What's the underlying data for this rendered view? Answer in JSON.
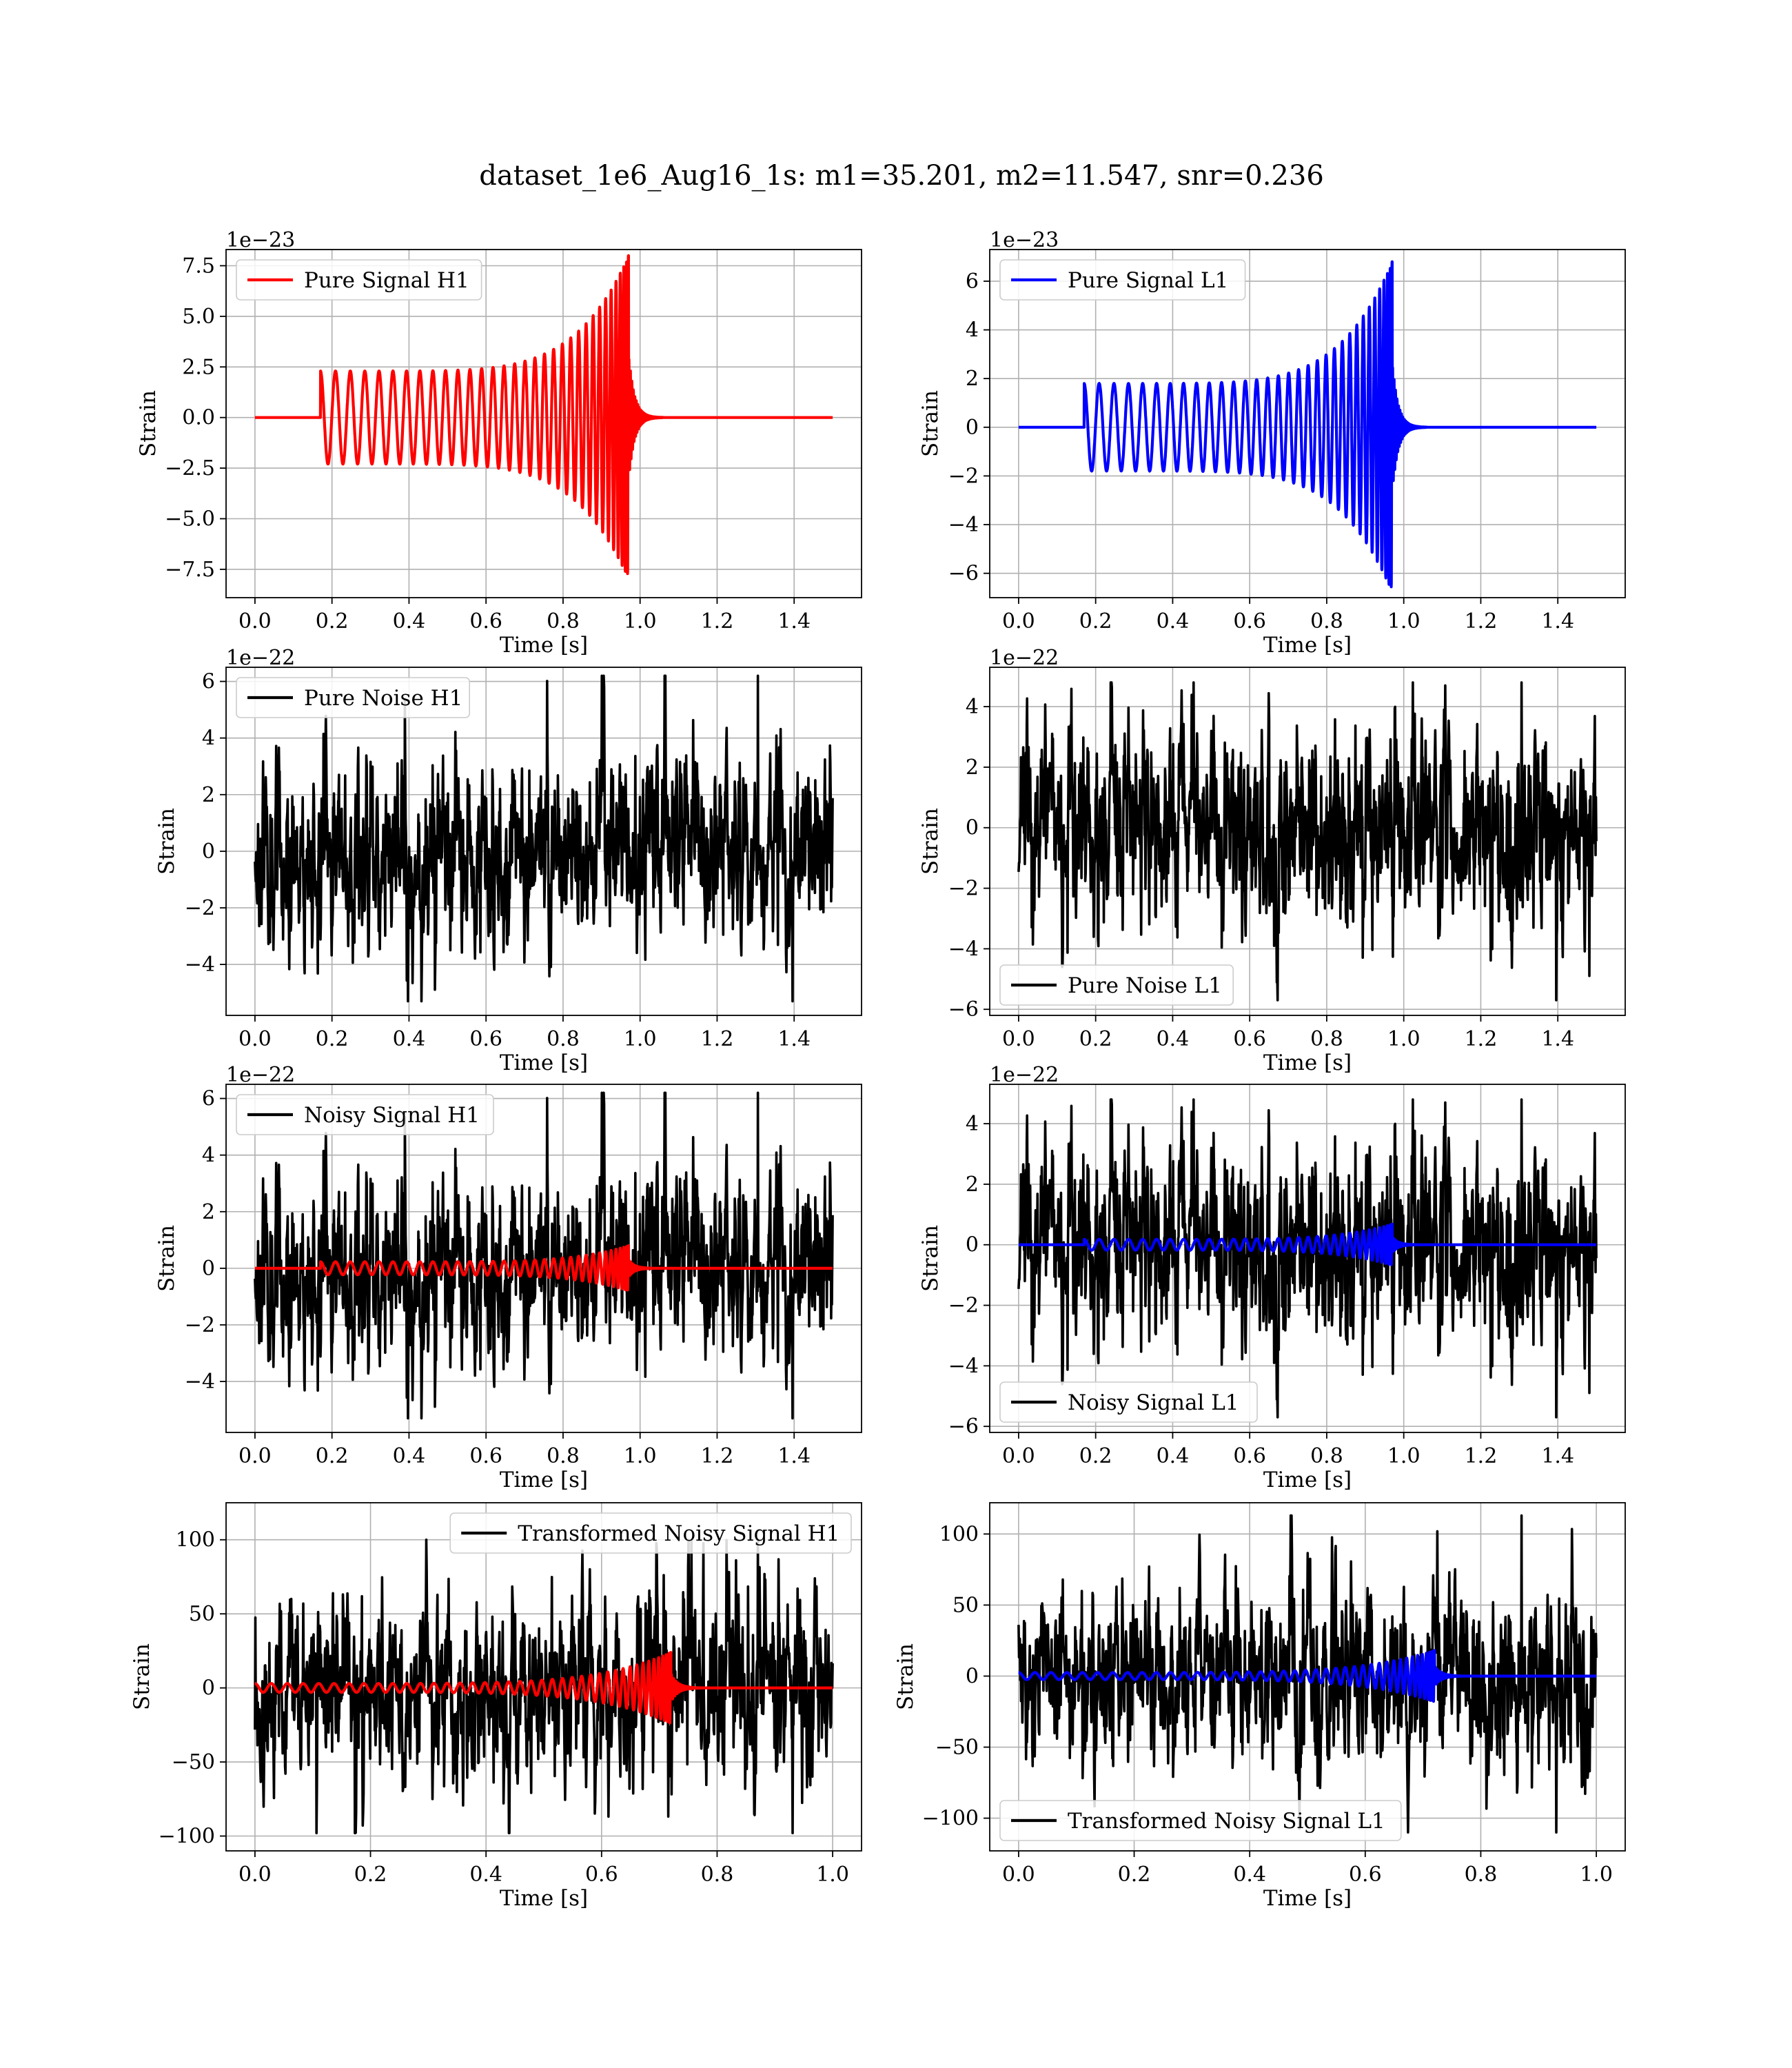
{
  "figure": {
    "title": "dataset_1e6_Aug16_1s: m1=35.201, m2=11.547, snr=0.236"
  },
  "colors": {
    "red": "#ff0000",
    "blue": "#0000ff",
    "black": "#000000",
    "grid": "#b0b0b0"
  },
  "chart_data": [
    {
      "type": "line",
      "kind": "chirp",
      "panel": "top-left",
      "legend": "top-left",
      "offset_text": "1e−23",
      "xlabel": "Time [s]",
      "ylabel": "Strain",
      "xlim": [
        -0.075,
        1.575
      ],
      "ylim": [
        -8.9,
        8.3
      ],
      "xticks": [
        0.0,
        0.2,
        0.4,
        0.6,
        0.8,
        1.0,
        1.2,
        1.4
      ],
      "xticklabels": [
        "0.0",
        "0.2",
        "0.4",
        "0.6",
        "0.8",
        "1.0",
        "1.2",
        "1.4"
      ],
      "yticks": [
        -7.5,
        -5.0,
        -2.5,
        0.0,
        2.5,
        5.0,
        7.5
      ],
      "yticklabels": [
        "−7.5",
        "−5.0",
        "−2.5",
        "0.0",
        "2.5",
        "5.0",
        "7.5"
      ],
      "grid": true,
      "series": [
        {
          "name": "Pure Signal H1",
          "color": "#ff0000",
          "signal": {
            "t_start": 0.0,
            "t_end": 1.5,
            "onset": 0.17,
            "merger": 0.97,
            "amp_start": 2.3,
            "amp_peak": 8.0,
            "cycles": 32,
            "ringdown": 0.015
          }
        }
      ]
    },
    {
      "type": "line",
      "kind": "chirp",
      "panel": "top-right",
      "legend": "top-left",
      "offset_text": "1e−23",
      "xlabel": "Time [s]",
      "ylabel": "Strain",
      "xlim": [
        -0.075,
        1.575
      ],
      "ylim": [
        -7.0,
        7.3
      ],
      "xticks": [
        0.0,
        0.2,
        0.4,
        0.6,
        0.8,
        1.0,
        1.2,
        1.4
      ],
      "xticklabels": [
        "0.0",
        "0.2",
        "0.4",
        "0.6",
        "0.8",
        "1.0",
        "1.2",
        "1.4"
      ],
      "yticks": [
        -6,
        -4,
        -2,
        0,
        2,
        4,
        6
      ],
      "yticklabels": [
        "−6",
        "−4",
        "−2",
        "0",
        "2",
        "4",
        "6"
      ],
      "grid": true,
      "series": [
        {
          "name": "Pure Signal L1",
          "color": "#0000ff",
          "signal": {
            "t_start": 0.0,
            "t_end": 1.5,
            "onset": 0.17,
            "merger": 0.97,
            "amp_start": 1.8,
            "amp_peak": 6.8,
            "cycles": 32,
            "ringdown": 0.015
          }
        }
      ]
    },
    {
      "type": "line",
      "kind": "noise",
      "panel": "row2-left",
      "legend": "top-left",
      "offset_text": "1e−22",
      "xlabel": "Time [s]",
      "ylabel": "Strain",
      "xlim": [
        -0.075,
        1.575
      ],
      "ylim": [
        -5.8,
        6.5
      ],
      "xticks": [
        0.0,
        0.2,
        0.4,
        0.6,
        0.8,
        1.0,
        1.2,
        1.4
      ],
      "xticklabels": [
        "0.0",
        "0.2",
        "0.4",
        "0.6",
        "0.8",
        "1.0",
        "1.2",
        "1.4"
      ],
      "yticks": [
        -4,
        -2,
        0,
        2,
        4,
        6
      ],
      "yticklabels": [
        "−4",
        "−2",
        "0",
        "2",
        "4",
        "6"
      ],
      "grid": true,
      "series": [
        {
          "name": "Pure Noise H1",
          "color": "#000000",
          "noise": {
            "t_start": 0.0,
            "t_end": 1.5,
            "n": 1500,
            "sigma": 1.55,
            "min": -5.3,
            "max": 6.2,
            "seed": 11
          }
        }
      ]
    },
    {
      "type": "line",
      "kind": "noise",
      "panel": "row2-right",
      "legend": "bottom-left",
      "offset_text": "1e−22",
      "xlabel": "Time [s]",
      "ylabel": "Strain",
      "xlim": [
        -0.075,
        1.575
      ],
      "ylim": [
        -6.2,
        5.3
      ],
      "xticks": [
        0.0,
        0.2,
        0.4,
        0.6,
        0.8,
        1.0,
        1.2,
        1.4
      ],
      "xticklabels": [
        "0.0",
        "0.2",
        "0.4",
        "0.6",
        "0.8",
        "1.0",
        "1.2",
        "1.4"
      ],
      "yticks": [
        -6,
        -4,
        -2,
        0,
        2,
        4
      ],
      "yticklabels": [
        "−6",
        "−4",
        "−2",
        "0",
        "2",
        "4"
      ],
      "grid": true,
      "series": [
        {
          "name": "Pure Noise L1",
          "color": "#000000",
          "noise": {
            "t_start": 0.0,
            "t_end": 1.5,
            "n": 1500,
            "sigma": 1.55,
            "min": -5.7,
            "max": 4.8,
            "seed": 23
          }
        }
      ]
    },
    {
      "type": "line",
      "kind": "noisy",
      "panel": "row3-left",
      "legend": "top-left",
      "offset_text": "1e−22",
      "xlabel": "Time [s]",
      "ylabel": "Strain",
      "xlim": [
        -0.075,
        1.575
      ],
      "ylim": [
        -5.8,
        6.5
      ],
      "xticks": [
        0.0,
        0.2,
        0.4,
        0.6,
        0.8,
        1.0,
        1.2,
        1.4
      ],
      "xticklabels": [
        "0.0",
        "0.2",
        "0.4",
        "0.6",
        "0.8",
        "1.0",
        "1.2",
        "1.4"
      ],
      "yticks": [
        -4,
        -2,
        0,
        2,
        4,
        6
      ],
      "yticklabels": [
        "−4",
        "−2",
        "0",
        "2",
        "4",
        "6"
      ],
      "grid": true,
      "series": [
        {
          "name": "Noisy Signal H1",
          "color": "#000000",
          "noise": {
            "t_start": 0.0,
            "t_end": 1.5,
            "n": 1500,
            "sigma": 1.55,
            "min": -5.3,
            "max": 6.2,
            "seed": 11
          }
        },
        {
          "name": "",
          "color": "#ff0000",
          "signal": {
            "t_start": 0.0,
            "t_end": 1.5,
            "onset": 0.17,
            "merger": 0.97,
            "amp_start": 0.23,
            "amp_peak": 0.8,
            "cycles": 32,
            "ringdown": 0.015
          }
        }
      ]
    },
    {
      "type": "line",
      "kind": "noisy",
      "panel": "row3-right",
      "legend": "bottom-left",
      "offset_text": "1e−22",
      "xlabel": "Time [s]",
      "ylabel": "Strain",
      "xlim": [
        -0.075,
        1.575
      ],
      "ylim": [
        -6.2,
        5.3
      ],
      "xticks": [
        0.0,
        0.2,
        0.4,
        0.6,
        0.8,
        1.0,
        1.2,
        1.4
      ],
      "xticklabels": [
        "0.0",
        "0.2",
        "0.4",
        "0.6",
        "0.8",
        "1.0",
        "1.2",
        "1.4"
      ],
      "yticks": [
        -6,
        -4,
        -2,
        0,
        2,
        4
      ],
      "yticklabels": [
        "−6",
        "−4",
        "−2",
        "0",
        "2",
        "4"
      ],
      "grid": true,
      "series": [
        {
          "name": "Noisy Signal L1",
          "color": "#000000",
          "noise": {
            "t_start": 0.0,
            "t_end": 1.5,
            "n": 1500,
            "sigma": 1.55,
            "min": -5.7,
            "max": 4.8,
            "seed": 23
          }
        },
        {
          "name": "",
          "color": "#0000ff",
          "signal": {
            "t_start": 0.0,
            "t_end": 1.5,
            "onset": 0.17,
            "merger": 0.97,
            "amp_start": 0.18,
            "amp_peak": 0.68,
            "cycles": 32,
            "ringdown": 0.015
          }
        }
      ]
    },
    {
      "type": "line",
      "kind": "noisy",
      "panel": "row4-left",
      "legend": "top-right",
      "offset_text": "",
      "xlabel": "Time [s]",
      "ylabel": "Strain",
      "xlim": [
        -0.05,
        1.05
      ],
      "ylim": [
        -110,
        125
      ],
      "xticks": [
        0.0,
        0.2,
        0.4,
        0.6,
        0.8,
        1.0
      ],
      "xticklabels": [
        "0.0",
        "0.2",
        "0.4",
        "0.6",
        "0.8",
        "1.0"
      ],
      "yticks": [
        -100,
        -50,
        0,
        50,
        100
      ],
      "yticklabels": [
        "−100",
        "−50",
        "0",
        "50",
        "100"
      ],
      "grid": true,
      "series": [
        {
          "name": "Transformed Noisy Signal H1",
          "color": "#000000",
          "noise": {
            "t_start": 0.0,
            "t_end": 1.0,
            "n": 1400,
            "sigma": 30,
            "min": -98,
            "max": 100,
            "seed": 37
          }
        },
        {
          "name": "",
          "color": "#ff0000",
          "signal": {
            "t_start": 0.0,
            "t_end": 1.0,
            "onset": 0.0,
            "merger": 0.72,
            "amp_start": 3.0,
            "amp_peak": 24,
            "cycles": 40,
            "ringdown": 0.012
          }
        }
      ]
    },
    {
      "type": "line",
      "kind": "noisy",
      "panel": "row4-right",
      "legend": "bottom-left",
      "offset_text": "",
      "xlabel": "Time [s]",
      "ylabel": "Strain",
      "xlim": [
        -0.05,
        1.05
      ],
      "ylim": [
        -123,
        122
      ],
      "xticks": [
        0.0,
        0.2,
        0.4,
        0.6,
        0.8,
        1.0
      ],
      "xticklabels": [
        "0.0",
        "0.2",
        "0.4",
        "0.6",
        "0.8",
        "1.0"
      ],
      "yticks": [
        -100,
        -50,
        0,
        50,
        100
      ],
      "yticklabels": [
        "−100",
        "−50",
        "0",
        "50",
        "100"
      ],
      "grid": true,
      "series": [
        {
          "name": "Transformed Noisy Signal L1",
          "color": "#000000",
          "noise": {
            "t_start": 0.0,
            "t_end": 1.0,
            "n": 1400,
            "sigma": 30,
            "min": -110,
            "max": 113,
            "seed": 53
          }
        },
        {
          "name": "",
          "color": "#0000ff",
          "signal": {
            "t_start": 0.0,
            "t_end": 1.0,
            "onset": 0.0,
            "merger": 0.72,
            "amp_start": 2.5,
            "amp_peak": 18,
            "cycles": 40,
            "ringdown": 0.012
          }
        }
      ]
    }
  ]
}
